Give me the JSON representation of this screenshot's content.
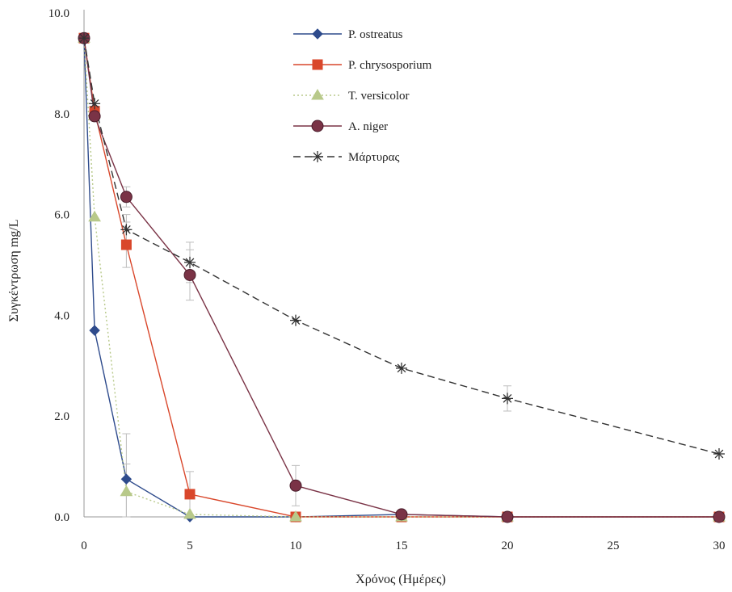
{
  "chart_data": {
    "type": "line",
    "xlabel": "Χρόνος (Ημέρες)",
    "ylabel": "Συγκέντρωση mg/L",
    "xlim": [
      0,
      30
    ],
    "ylim": [
      0,
      10
    ],
    "x_ticks": [
      "0",
      "5",
      "10",
      "15",
      "20",
      "25",
      "30"
    ],
    "y_ticks": [
      "0.0",
      "2.0",
      "4.0",
      "6.0",
      "8.0",
      "10.0"
    ],
    "grid": false,
    "legend_position": "top-center",
    "series": [
      {
        "name": "P. ostreatus",
        "color": "#2e4b8c",
        "marker": "diamond",
        "dash": "solid",
        "points": [
          [
            0,
            9.5
          ],
          [
            0.5,
            3.7
          ],
          [
            2,
            0.75
          ],
          [
            5,
            0.0
          ],
          [
            10,
            0.0
          ],
          [
            15,
            0.05
          ],
          [
            20,
            0.0
          ],
          [
            30,
            0.0
          ]
        ],
        "errors": [
          0,
          0,
          0.9,
          0,
          0,
          0,
          0,
          0
        ]
      },
      {
        "name": "P. chrysosporium",
        "color": "#d9472b",
        "marker": "square",
        "dash": "solid",
        "points": [
          [
            0,
            9.5
          ],
          [
            0.5,
            8.05
          ],
          [
            2,
            5.4
          ],
          [
            5,
            0.45
          ],
          [
            10,
            0.0
          ],
          [
            15,
            0.0
          ],
          [
            20,
            0.0
          ],
          [
            30,
            0.0
          ]
        ],
        "errors": [
          0,
          0.1,
          0.45,
          0.45,
          0,
          0,
          0,
          0
        ]
      },
      {
        "name": "T. versicolor",
        "color": "#b8c98a",
        "marker": "triangle",
        "dash": "dotted",
        "points": [
          [
            0,
            9.5
          ],
          [
            0.5,
            5.95
          ],
          [
            2,
            0.5
          ],
          [
            5,
            0.05
          ],
          [
            10,
            0.0
          ],
          [
            15,
            0.0
          ],
          [
            20,
            0.0
          ],
          [
            30,
            0.0
          ]
        ],
        "errors": [
          0,
          0,
          0.55,
          0,
          0,
          0,
          0,
          0
        ]
      },
      {
        "name": "A. niger",
        "color": "#7a3346",
        "marker": "circle",
        "dash": "solid",
        "points": [
          [
            0,
            9.5
          ],
          [
            0.5,
            7.95
          ],
          [
            2,
            6.35
          ],
          [
            5,
            4.8
          ],
          [
            10,
            0.62
          ],
          [
            15,
            0.05
          ],
          [
            20,
            0.0
          ],
          [
            30,
            0.0
          ]
        ],
        "errors": [
          0,
          0,
          0.2,
          0.5,
          0.4,
          0,
          0,
          0
        ]
      },
      {
        "name": "Μάρτυρας",
        "color": "#333333",
        "marker": "star",
        "dash": "dashed",
        "points": [
          [
            0,
            9.5
          ],
          [
            0.5,
            8.2
          ],
          [
            2,
            5.7
          ],
          [
            5,
            5.05
          ],
          [
            10,
            3.9
          ],
          [
            15,
            2.95
          ],
          [
            20,
            2.35
          ],
          [
            30,
            1.25
          ]
        ],
        "errors": [
          0,
          0,
          0.3,
          0.4,
          0,
          0,
          0.25,
          0
        ]
      }
    ]
  }
}
